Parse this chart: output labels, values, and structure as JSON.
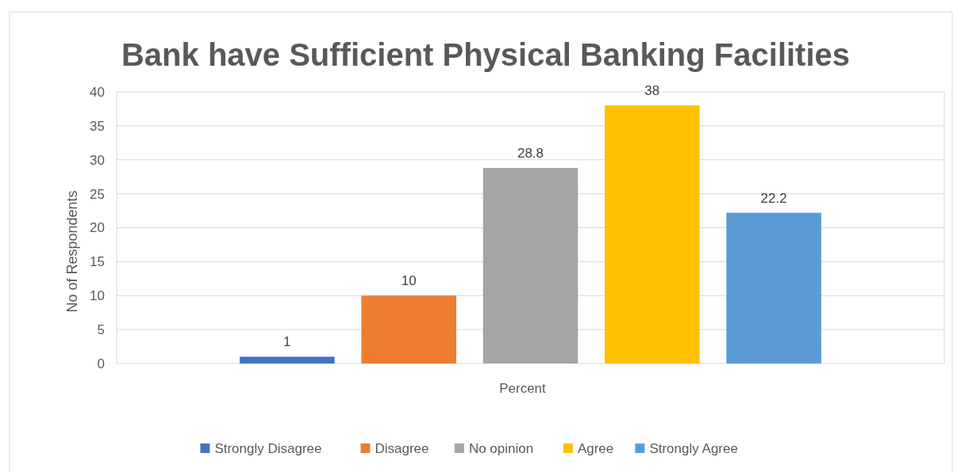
{
  "chart_data": {
    "type": "bar",
    "title": "Bank have Sufficient Physical Banking Facilities",
    "ylabel": "No of Respondents",
    "categories": [
      "Percent"
    ],
    "series": [
      {
        "name": "Strongly Disagree",
        "color": "#4472c4",
        "values": [
          1
        ]
      },
      {
        "name": "Disagree",
        "color": "#ed7d31",
        "values": [
          10
        ]
      },
      {
        "name": "No opinion",
        "color": "#a5a5a5",
        "values": [
          28.8
        ]
      },
      {
        "name": "Agree",
        "color": "#ffc000",
        "values": [
          38
        ]
      },
      {
        "name": "Strongly Agree",
        "color": "#5b9bd5",
        "values": [
          22.2
        ]
      }
    ],
    "ylim": [
      0,
      40
    ],
    "yticks": [
      0,
      5,
      10,
      15,
      20,
      25,
      30,
      35,
      40
    ],
    "grid": "y",
    "legend": "bottom",
    "data_labels": true
  }
}
